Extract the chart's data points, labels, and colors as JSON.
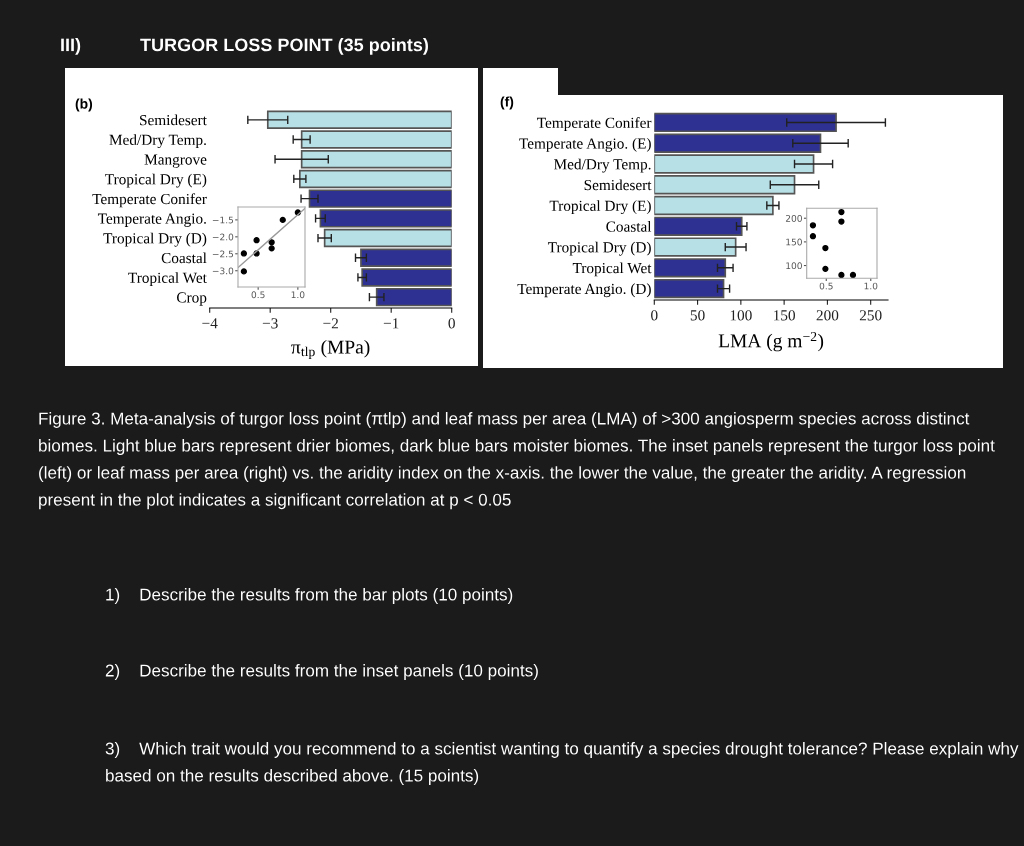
{
  "chart_data": [
    {
      "type": "bar",
      "orientation": "horizontal",
      "xlabel": "π$_{tlp}$ (MPa)",
      "categories": [
        "Semidesert",
        "Med/Dry Temp.",
        "Mangrove",
        "Tropical Dry (E)",
        "Temperate Conifer",
        "Temperate Angio.",
        "Tropical Dry (D)",
        "Coastal",
        "Tropical Wet",
        "Crop"
      ],
      "values": [
        -3.04,
        -2.48,
        -2.48,
        -2.51,
        -2.35,
        -2.17,
        -2.1,
        -1.5,
        -1.48,
        -1.24
      ],
      "errors": [
        0.33,
        0.14,
        0.44,
        0.1,
        0.14,
        0.08,
        0.11,
        0.09,
        0.07,
        0.12
      ],
      "colors": [
        "#b7e0e6",
        "#b7e0e6",
        "#b7e0e6",
        "#b7e0e6",
        "#2e3192",
        "#2e3192",
        "#b7e0e6",
        "#2e3192",
        "#2e3192",
        "#2e3192"
      ],
      "xlim": [
        -4,
        0
      ],
      "xticks": [
        {
          "value": -4,
          "label": "−4"
        },
        {
          "value": -3,
          "label": "−3"
        },
        {
          "value": -2,
          "label": "−2"
        },
        {
          "value": -1,
          "label": "−1"
        },
        0
      ],
      "annotations": [
        "(b)",
        "III)",
        "TURGOR LOSS POINT (35 points)",
        "Figure 3. Meta-analysis of turgor loss point (πtlp) and leaf mass per area (LMA) of >300 angiosperm species across distinct biomes. Light blue bars represent drier biomes, dark blue bars moister biomes. The inset panels represent the turgor loss point (left) or leaf mass per area (right) vs. the aridity index on the x-axis. the lower the value, the greater the aridity. A regression present in the plot indicates a significant correlation at p < 0.05",
        "1)    Describe the results from the bar plots (10 points)",
        "2)    Describe the results from the inset panels (10 points)",
        "3)    Which trait would you recommend to a scientist wanting to quantify a species drought tolerance? Please explain why based on the results described above. (15 points)"
      ]
    },
    {
      "type": "scatter",
      "xlim": [
        0.246,
        1.09
      ],
      "ylim": [
        -3.48,
        -1.12
      ],
      "xticks": [
        0.5,
        {
          "value": 1.0,
          "label": "1.0"
        }
      ],
      "yticks": [
        {
          "value": -1.5,
          "label": "−1.5"
        },
        {
          "value": -2.0,
          "label": "−2.0"
        },
        {
          "value": -2.5,
          "label": "−2.5"
        },
        {
          "value": -3.0,
          "label": "−3.0"
        }
      ],
      "series": [
        {
          "type": "scatter",
          "marker": "circle",
          "color": "#000000",
          "x": [
            1.0,
            0.81,
            0.48,
            0.67,
            0.67,
            0.32,
            0.48,
            0.32
          ],
          "values": [
            -1.28,
            -1.5,
            -2.1,
            -2.16,
            -2.34,
            -2.49,
            -2.49,
            -3.02
          ]
        },
        {
          "type": "line",
          "color": "#999999",
          "x": [
            0.25,
            1.09
          ],
          "values": [
            -2.9,
            -1.16
          ]
        }
      ]
    },
    {
      "type": "bar",
      "orientation": "horizontal",
      "xlabel": "LMA (g m$^{−2}$)",
      "categories": [
        "Temperate Conifer",
        "Temperate Angio. (E)",
        "Med/Dry Temp.",
        "Semidesert",
        "Tropical Dry (E)",
        "Coastal",
        "Tropical Dry (D)",
        "Tropical Wet",
        "Temperate Angio. (D)"
      ],
      "values": [
        210,
        192,
        184,
        162,
        137,
        101,
        94,
        82,
        80
      ],
      "errors": [
        57,
        32,
        22,
        28,
        7,
        6,
        12,
        9,
        7
      ],
      "colors": [
        "#2e3192",
        "#2e3192",
        "#b7e0e6",
        "#b7e0e6",
        "#b7e0e6",
        "#2e3192",
        "#b7e0e6",
        "#2e3192",
        "#2e3192"
      ],
      "xlim": [
        0,
        270
      ],
      "xticks": [
        0,
        50,
        100,
        150,
        200,
        250
      ],
      "annotations": [
        "(f)"
      ]
    },
    {
      "type": "scatter",
      "marker": "circle",
      "xlim": [
        0.28,
        1.07
      ],
      "ylim": [
        73,
        221
      ],
      "xticks": [
        0.5,
        {
          "value": 1.0,
          "label": "1.0"
        }
      ],
      "yticks": [
        100,
        150,
        200
      ],
      "series": [
        {
          "type": "scatter",
          "color": "#000000",
          "x": [
            0.67,
            0.67,
            0.35,
            0.35,
            0.49,
            0.49,
            0.67,
            0.8
          ],
          "values": [
            213,
            193,
            185,
            162,
            137,
            93,
            80,
            80
          ]
        }
      ]
    }
  ]
}
